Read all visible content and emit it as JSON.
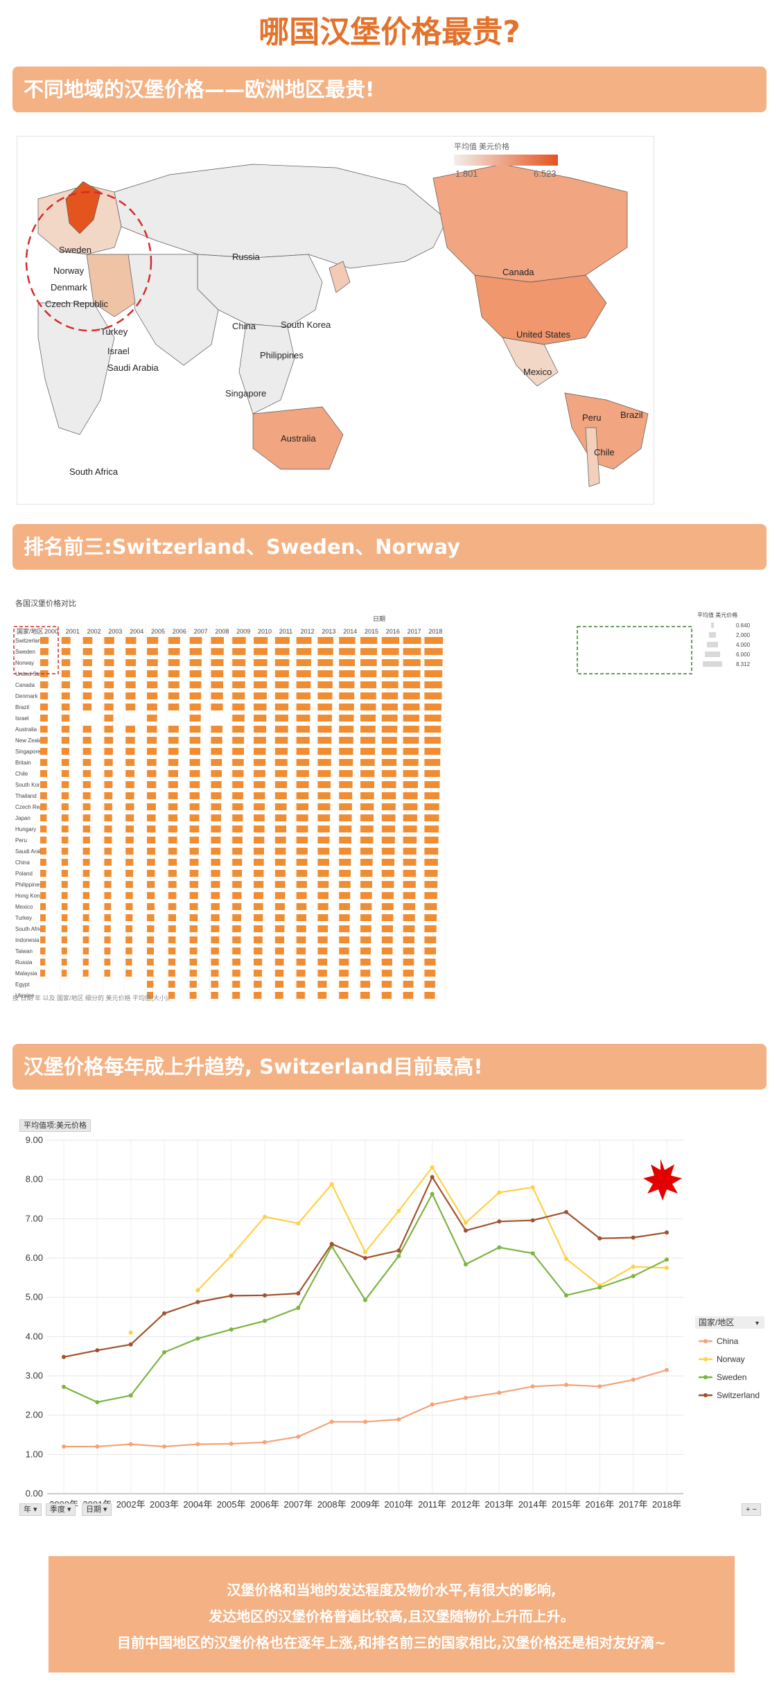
{
  "page": {
    "title": "哪国汉堡价格最贵?",
    "section1": "不同地域的汉堡价格——欧洲地区最贵!",
    "section2": "排名前三:Switzerland、Sweden、Norway",
    "section3": "汉堡价格每年成上升趋势, Switzerland目前最高!",
    "note_lines": [
      "汉堡价格和当地的发达程度及物价水平,有很大的影响,",
      "发达地区的汉堡价格普遍比较高,且汉堡随物价上升而上升。",
      "目前中国地区的汉堡价格也在逐年上涨,和排名前三的国家相比,汉堡价格还是相对友好滴~"
    ]
  },
  "map": {
    "legend_title": "平均值 美元价格",
    "legend_min": "1.801",
    "legend_max": "6.523",
    "colors": {
      "low": "#f3efec",
      "high": "#e4541e",
      "land": "#ececec",
      "border": "#555555"
    },
    "labels": [
      "Sweden",
      "Norway",
      "Denmark",
      "Czech Republic",
      "Turkey",
      "Israel",
      "Saudi Arabia",
      "Russia",
      "China",
      "South Korea",
      "Philippines",
      "Singapore",
      "Australia",
      "South Africa",
      "Canada",
      "United States",
      "Mexico",
      "Peru",
      "Brazil",
      "Chile"
    ]
  },
  "table": {
    "title": "各国汉堡价格对比",
    "date_header": "日期",
    "row_header": "国家/地区",
    "size_legend_title": "平均值 美元价格",
    "size_legend": [
      "0.640",
      "2.000",
      "4.000",
      "6.000",
      "8.312"
    ],
    "footnote": "按 日期 年 以及 国家/地区 细分的 美元价格 平均值(大小)。",
    "bar_color": "#f08c32"
  },
  "line": {
    "measure_label": "平均值项:美元价格",
    "legend_title": "国家/地区",
    "filters": [
      "年 ▾",
      "季度 ▾",
      "日期 ▾"
    ],
    "zoom": "+ −"
  },
  "chart_data": [
    {
      "type": "table",
      "columns": [
        "2000",
        "2001",
        "2002",
        "2003",
        "2004",
        "2005",
        "2006",
        "2007",
        "2008",
        "2009",
        "2010",
        "2011",
        "2012",
        "2013",
        "2014",
        "2015",
        "2016",
        "2017",
        "2018"
      ],
      "rows": [
        "Switzerland",
        "Sweden",
        "Norway",
        "United Stat..",
        "Canada",
        "Denmark",
        "Brazil",
        "Israel",
        "Australia",
        "New Zealand",
        "Singapore",
        "Britain",
        "Chile",
        "South Korea",
        "Thailand",
        "Czech Repu..",
        "Japan",
        "Hungary",
        "Peru",
        "Saudi Arabia",
        "China",
        "Poland",
        "Philippines",
        "Hong Kong",
        "Mexico",
        "Turkey",
        "South Africa",
        "Indonesia",
        "Taiwan",
        "Russia",
        "Malaysia",
        "Egypt",
        "Ukraine"
      ]
    },
    {
      "type": "line",
      "x": [
        "2000年",
        "2001年",
        "2002年",
        "2003年",
        "2004年",
        "2005年",
        "2006年",
        "2007年",
        "2008年",
        "2009年",
        "2010年",
        "2011年",
        "2012年",
        "2013年",
        "2014年",
        "2015年",
        "2016年",
        "2017年",
        "2018年"
      ],
      "ylim": [
        0,
        9
      ],
      "yticks": [
        "0.00",
        "1.00",
        "2.00",
        "3.00",
        "4.00",
        "5.00",
        "6.00",
        "7.00",
        "8.00",
        "9.00"
      ],
      "series": [
        {
          "name": "China",
          "color": "#f4a276",
          "values": [
            1.2,
            1.2,
            1.26,
            1.2,
            1.26,
            1.27,
            1.31,
            1.45,
            1.83,
            1.83,
            1.89,
            2.27,
            2.44,
            2.57,
            2.73,
            2.77,
            2.73,
            2.9,
            3.15
          ]
        },
        {
          "name": "Norway",
          "color": "#ffd046",
          "values": [
            null,
            null,
            4.1,
            null,
            5.18,
            6.06,
            7.05,
            6.88,
            7.88,
            6.15,
            7.2,
            8.31,
            6.9,
            7.67,
            7.8,
            5.98,
            5.3,
            5.78,
            5.75
          ]
        },
        {
          "name": "Sweden",
          "color": "#7cb342",
          "values": [
            2.72,
            2.33,
            2.5,
            3.6,
            3.95,
            4.18,
            4.4,
            4.73,
            6.3,
            4.93,
            6.05,
            7.63,
            5.84,
            6.27,
            6.12,
            5.05,
            5.25,
            5.54,
            5.96
          ]
        },
        {
          "name": "Switzerland",
          "color": "#a0522d",
          "values": [
            3.48,
            3.65,
            3.8,
            4.59,
            4.88,
            5.04,
            5.05,
            5.1,
            6.36,
            6.0,
            6.19,
            8.06,
            6.7,
            6.93,
            6.96,
            7.17,
            6.5,
            6.52,
            6.65
          ]
        }
      ]
    }
  ]
}
